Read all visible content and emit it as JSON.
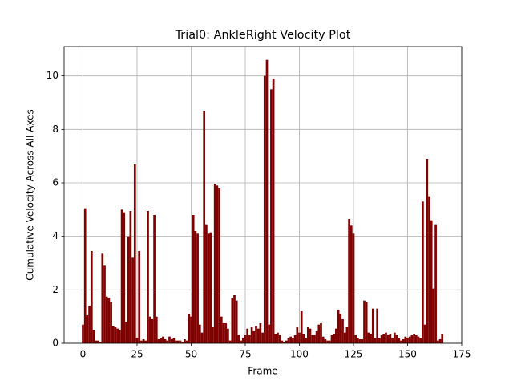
{
  "chart_data": {
    "type": "bar",
    "title": "Trial0: AnkleRight Velocity Plot",
    "x_label": "Frame",
    "y_label": "Cumulative Velocity Across All Axes",
    "x": [
      0,
      1,
      2,
      3,
      4,
      5,
      6,
      7,
      8,
      9,
      10,
      11,
      12,
      13,
      14,
      15,
      16,
      17,
      18,
      19,
      20,
      21,
      22,
      23,
      24,
      25,
      26,
      27,
      28,
      29,
      30,
      31,
      32,
      33,
      34,
      35,
      36,
      37,
      38,
      39,
      40,
      41,
      42,
      43,
      44,
      45,
      46,
      47,
      48,
      49,
      50,
      51,
      52,
      53,
      54,
      55,
      56,
      57,
      58,
      59,
      60,
      61,
      62,
      63,
      64,
      65,
      66,
      67,
      68,
      69,
      70,
      71,
      72,
      73,
      74,
      75,
      76,
      77,
      78,
      79,
      80,
      81,
      82,
      83,
      84,
      85,
      86,
      87,
      88,
      89,
      90,
      91,
      92,
      93,
      94,
      95,
      96,
      97,
      98,
      99,
      100,
      101,
      102,
      103,
      104,
      105,
      106,
      107,
      108,
      109,
      110,
      111,
      112,
      113,
      114,
      115,
      116,
      117,
      118,
      119,
      120,
      121,
      122,
      123,
      124,
      125,
      126,
      127,
      128,
      129,
      130,
      131,
      132,
      133,
      134,
      135,
      136,
      137,
      138,
      139,
      140,
      141,
      142,
      143,
      144,
      145,
      146,
      147,
      148,
      149,
      150,
      151,
      152,
      153,
      154,
      155,
      156,
      157,
      158,
      159,
      160,
      161,
      162,
      163,
      164,
      165,
      166
    ],
    "values": [
      0.7,
      5.05,
      1.05,
      1.4,
      3.45,
      0.5,
      0.1,
      0.1,
      0.05,
      3.35,
      2.9,
      1.75,
      1.7,
      1.55,
      0.65,
      0.6,
      0.55,
      0.5,
      5.0,
      4.9,
      0.8,
      4.0,
      4.95,
      3.2,
      6.7,
      0.2,
      3.45,
      0.1,
      0.15,
      0.1,
      4.95,
      1.0,
      0.9,
      4.8,
      1.0,
      0.15,
      0.2,
      0.25,
      0.15,
      0.1,
      0.25,
      0.15,
      0.2,
      0.1,
      0.1,
      0.1,
      0.05,
      0.15,
      0.1,
      1.1,
      1.0,
      4.8,
      4.2,
      4.1,
      0.7,
      0.4,
      8.7,
      4.45,
      4.1,
      4.15,
      0.6,
      5.95,
      5.9,
      5.8,
      1.0,
      0.75,
      0.75,
      0.55,
      0.1,
      1.7,
      1.8,
      1.6,
      0.3,
      0.1,
      0.2,
      0.3,
      0.55,
      0.3,
      0.6,
      0.45,
      0.65,
      0.55,
      0.75,
      0.4,
      10.0,
      10.6,
      0.7,
      9.5,
      9.9,
      0.35,
      0.4,
      0.3,
      0.1,
      0.05,
      0.1,
      0.2,
      0.25,
      0.2,
      0.3,
      0.6,
      0.4,
      1.2,
      0.35,
      0.2,
      0.6,
      0.55,
      0.3,
      0.3,
      0.45,
      0.7,
      0.75,
      0.25,
      0.15,
      0.1,
      0.1,
      0.3,
      0.35,
      0.55,
      1.25,
      1.1,
      0.9,
      0.4,
      0.6,
      4.65,
      4.4,
      4.1,
      0.3,
      0.2,
      0.15,
      0.15,
      1.6,
      1.55,
      0.4,
      0.35,
      1.3,
      0.2,
      1.3,
      0.2,
      0.3,
      0.35,
      0.4,
      0.3,
      0.35,
      0.2,
      0.4,
      0.3,
      0.2,
      0.1,
      0.15,
      0.25,
      0.2,
      0.25,
      0.3,
      0.35,
      0.3,
      0.25,
      0.2,
      5.3,
      0.7,
      6.9,
      5.5,
      4.6,
      2.05,
      4.45,
      0.1,
      0.15,
      0.35
    ],
    "color": "#800000",
    "xlim": [
      -8.7,
      175
    ],
    "xticks": [
      0,
      25,
      50,
      75,
      100,
      125,
      150,
      175
    ],
    "ylim": [
      0,
      11.1
    ],
    "yticks": [
      0,
      2,
      4,
      6,
      8,
      10
    ],
    "grid": true
  }
}
